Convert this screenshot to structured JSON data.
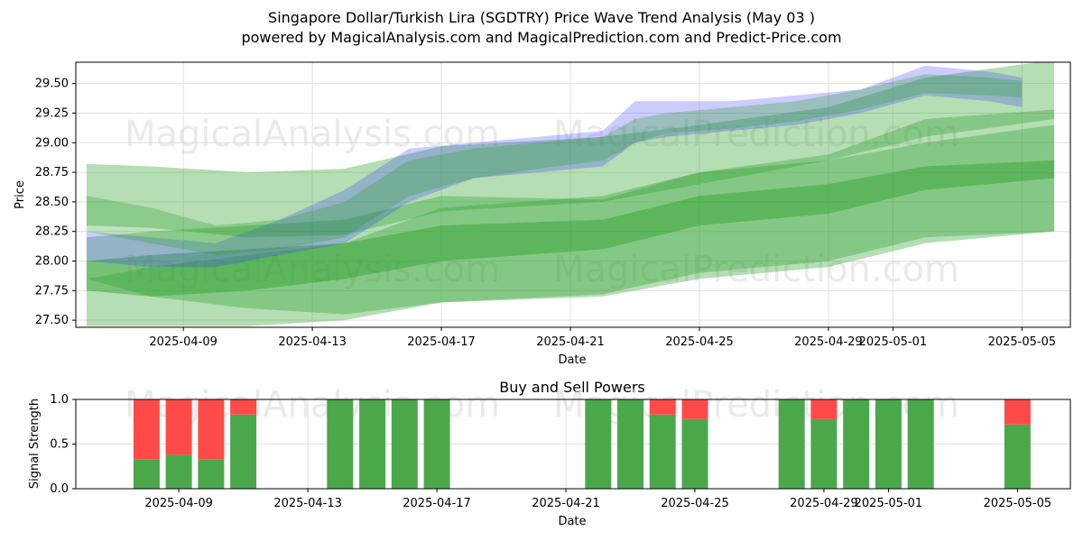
{
  "header": {
    "title_line1": "Singapore Dollar/Turkish Lira (SGDTRY) Price Wave Trend Analysis (May 03 )",
    "title_line2": "powered by MagicalAnalysis.com and MagicalPrediction.com and Predict-Price.com"
  },
  "watermarks": [
    "MagicalAnalysis.com",
    "MagicalPrediction.com"
  ],
  "colors": {
    "green_band": "#2ca02c",
    "blue_band": "#3333ff",
    "buy": "#4aa84a",
    "sell": "#ff4a4a",
    "grid": "#e0e0e0"
  },
  "chart_data": [
    {
      "type": "area",
      "title": "",
      "xlabel": "Date",
      "ylabel": "Price",
      "x_ticks": [
        "2025-04-09",
        "2025-04-13",
        "2025-04-17",
        "2025-04-21",
        "2025-04-25",
        "2025-04-29",
        "2025-05-01",
        "2025-05-05"
      ],
      "y_ticks": [
        "27.50",
        "27.75",
        "28.00",
        "28.25",
        "28.50",
        "28.75",
        "29.00",
        "29.25",
        "29.50"
      ],
      "ylim": [
        27.44,
        29.68
      ],
      "xlim": [
        "2025-04-05 16:00",
        "2025-05-06 12:00"
      ],
      "grid": true,
      "bands": [
        {
          "color": "green",
          "opacity": 0.35,
          "x": [
            "2025-04-06",
            "2025-04-08",
            "2025-04-11",
            "2025-04-14",
            "2025-04-17",
            "2025-04-22",
            "2025-04-25",
            "2025-04-29",
            "2025-05-02",
            "2025-05-06"
          ],
          "upper": [
            28.82,
            28.8,
            28.75,
            28.78,
            28.97,
            29.05,
            29.15,
            29.3,
            29.55,
            29.7
          ],
          "lower": [
            28.3,
            28.28,
            28.2,
            28.22,
            28.42,
            28.5,
            28.65,
            28.85,
            29.05,
            29.2
          ]
        },
        {
          "color": "green",
          "opacity": 0.35,
          "x": [
            "2025-04-06",
            "2025-04-08",
            "2025-04-11",
            "2025-04-14",
            "2025-04-17",
            "2025-04-22",
            "2025-04-25",
            "2025-04-29",
            "2025-05-02",
            "2025-05-06"
          ],
          "upper": [
            28.2,
            28.25,
            28.3,
            28.35,
            28.55,
            28.52,
            28.75,
            28.85,
            29.0,
            29.15
          ],
          "lower": [
            27.85,
            27.7,
            27.6,
            27.55,
            27.65,
            27.7,
            27.85,
            27.95,
            28.15,
            28.25
          ]
        },
        {
          "color": "green",
          "opacity": 0.35,
          "x": [
            "2025-04-06",
            "2025-04-08",
            "2025-04-11",
            "2025-04-14",
            "2025-04-17",
            "2025-04-22",
            "2025-04-25",
            "2025-04-29",
            "2025-05-02",
            "2025-05-06"
          ],
          "upper": [
            27.85,
            27.95,
            28.05,
            28.15,
            28.45,
            28.55,
            28.75,
            28.9,
            29.2,
            29.28
          ],
          "lower": [
            27.45,
            27.45,
            27.45,
            27.5,
            27.65,
            27.72,
            27.9,
            28.0,
            28.2,
            28.25
          ]
        },
        {
          "color": "green",
          "opacity": 0.45,
          "x": [
            "2025-04-06",
            "2025-04-08",
            "2025-04-11",
            "2025-04-14",
            "2025-04-17",
            "2025-04-22",
            "2025-04-25",
            "2025-04-29",
            "2025-05-02",
            "2025-05-06"
          ],
          "upper": [
            28.0,
            28.05,
            28.1,
            28.15,
            28.3,
            28.35,
            28.55,
            28.65,
            28.8,
            28.85
          ],
          "lower": [
            27.75,
            27.7,
            27.75,
            27.85,
            28.0,
            28.1,
            28.3,
            28.4,
            28.6,
            28.7
          ]
        },
        {
          "color": "blue",
          "opacity": 0.25,
          "x": [
            "2025-04-06",
            "2025-04-08",
            "2025-04-10",
            "2025-04-12",
            "2025-04-14",
            "2025-04-16",
            "2025-04-18",
            "2025-04-20",
            "2025-04-22",
            "2025-04-23",
            "2025-04-24",
            "2025-04-26",
            "2025-04-28",
            "2025-04-30",
            "2025-05-02",
            "2025-05-04",
            "2025-05-05"
          ],
          "upper": [
            28.25,
            28.2,
            28.15,
            28.35,
            28.6,
            28.95,
            29.0,
            29.05,
            29.1,
            29.35,
            29.35,
            29.35,
            29.4,
            29.45,
            29.65,
            29.6,
            29.55
          ],
          "lower": [
            28.0,
            27.95,
            27.95,
            28.05,
            28.15,
            28.5,
            28.7,
            28.75,
            28.8,
            29.0,
            29.05,
            29.1,
            29.15,
            29.25,
            29.4,
            29.35,
            29.3
          ]
        },
        {
          "color": "green",
          "opacity": 0.3,
          "x": [
            "2025-04-06",
            "2025-04-08",
            "2025-04-10",
            "2025-04-12",
            "2025-04-14",
            "2025-04-16",
            "2025-04-18",
            "2025-04-20",
            "2025-04-22",
            "2025-04-23",
            "2025-04-24",
            "2025-04-26",
            "2025-04-28",
            "2025-04-30",
            "2025-05-02",
            "2025-05-04",
            "2025-05-05"
          ],
          "upper": [
            28.55,
            28.45,
            28.3,
            28.35,
            28.5,
            28.85,
            28.95,
            29.0,
            29.05,
            29.2,
            29.25,
            29.3,
            29.35,
            29.45,
            29.58,
            29.55,
            29.52
          ],
          "lower": [
            28.25,
            28.15,
            28.05,
            28.1,
            28.2,
            28.55,
            28.7,
            28.78,
            28.85,
            29.0,
            29.08,
            29.12,
            29.18,
            29.28,
            29.42,
            29.4,
            29.38
          ]
        }
      ]
    },
    {
      "type": "bar",
      "title": "Buy and Sell Powers",
      "xlabel": "Date",
      "ylabel": "Signal Strength",
      "x_ticks": [
        "2025-04-09",
        "2025-04-13",
        "2025-04-17",
        "2025-04-21",
        "2025-04-25",
        "2025-04-29",
        "2025-05-01",
        "2025-05-05"
      ],
      "y_ticks": [
        "0.0",
        "0.5",
        "1.0"
      ],
      "ylim": [
        0,
        1
      ],
      "grid": true,
      "series": [
        {
          "name": "Buy",
          "categories": [
            "2025-04-08",
            "2025-04-09",
            "2025-04-10",
            "2025-04-11",
            "2025-04-14",
            "2025-04-15",
            "2025-04-16",
            "2025-04-17",
            "2025-04-22",
            "2025-04-23",
            "2025-04-24",
            "2025-04-25",
            "2025-04-28",
            "2025-04-29",
            "2025-04-30",
            "2025-05-01",
            "2025-05-02",
            "2025-05-05"
          ],
          "values": [
            0.33,
            0.38,
            0.33,
            0.83,
            1.0,
            1.0,
            1.0,
            1.0,
            1.0,
            1.0,
            0.83,
            0.78,
            1.0,
            0.78,
            1.0,
            1.0,
            1.0,
            0.72
          ]
        },
        {
          "name": "Sell",
          "categories": [
            "2025-04-08",
            "2025-04-09",
            "2025-04-10",
            "2025-04-11",
            "2025-04-14",
            "2025-04-15",
            "2025-04-16",
            "2025-04-17",
            "2025-04-22",
            "2025-04-23",
            "2025-04-24",
            "2025-04-25",
            "2025-04-28",
            "2025-04-29",
            "2025-04-30",
            "2025-05-01",
            "2025-05-02",
            "2025-05-05"
          ],
          "values": [
            0.67,
            0.62,
            0.67,
            0.17,
            0.0,
            0.0,
            0.0,
            0.0,
            0.0,
            0.0,
            0.17,
            0.22,
            0.0,
            0.22,
            0.0,
            0.0,
            0.0,
            0.28
          ]
        }
      ]
    }
  ]
}
